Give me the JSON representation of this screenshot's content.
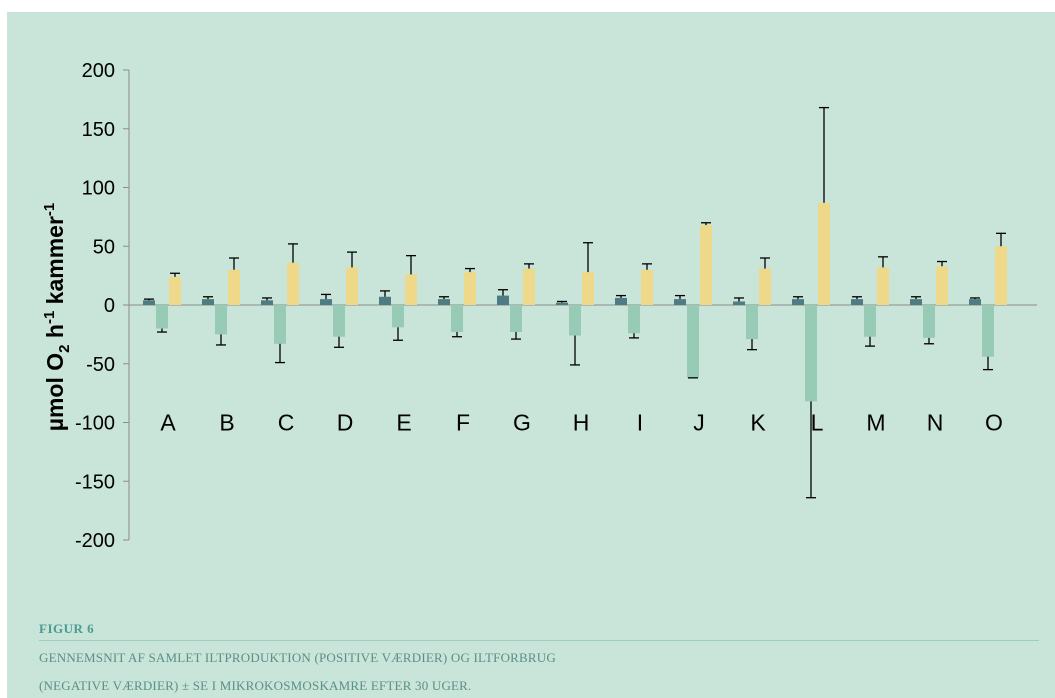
{
  "chart_data": {
    "type": "bar",
    "ylabel_main": "µmol O",
    "ylabel_sub": "2",
    "ylabel_mid": " h",
    "ylabel_sup1": "-1",
    "ylabel_end": " kammer",
    "ylabel_sup2": "-1",
    "ylim": [
      -200,
      200
    ],
    "yticks": [
      -200,
      -150,
      -100,
      -50,
      0,
      50,
      100,
      150,
      200
    ],
    "categories": [
      "A",
      "B",
      "C",
      "D",
      "E",
      "F",
      "G",
      "H",
      "I",
      "J",
      "K",
      "L",
      "M",
      "N",
      "O"
    ],
    "series": [
      {
        "color": "#4f7c83",
        "values": [
          4,
          5,
          4,
          5,
          7,
          5,
          8,
          2,
          6,
          5,
          3,
          5,
          5,
          5,
          5
        ],
        "errors": [
          1,
          2,
          2,
          4,
          5,
          2,
          5,
          1,
          2,
          3,
          3,
          2,
          2,
          2,
          1
        ]
      },
      {
        "color": "#98cbb6",
        "values": [
          -20,
          -25,
          -33,
          -27,
          -19,
          -23,
          -23,
          -26,
          -24,
          -62,
          -29,
          -82,
          -27,
          -28,
          -44
        ],
        "errors": [
          3,
          9,
          16,
          9,
          11,
          4,
          6,
          25,
          4,
          0,
          9,
          82,
          8,
          5,
          11
        ]
      },
      {
        "color": "#eed98a",
        "values": [
          24,
          30,
          36,
          32,
          26,
          28,
          31,
          28,
          30,
          68,
          31,
          87,
          32,
          33,
          50
        ],
        "errors": [
          3,
          10,
          16,
          13,
          16,
          3,
          4,
          25,
          5,
          2,
          9,
          81,
          9,
          4,
          11
        ]
      }
    ]
  },
  "caption": {
    "label": "FIGUR 6",
    "line1": "GENNEMSNIT AF SAMLET ILTPRODUKTION (POSITIVE VÆRDIER) OG ILTFORBRUG",
    "line2": "(NEGATIVE VÆRDIER) ± SE I MIKROKOSMOSKAMRE EFTER 30 UGER."
  }
}
